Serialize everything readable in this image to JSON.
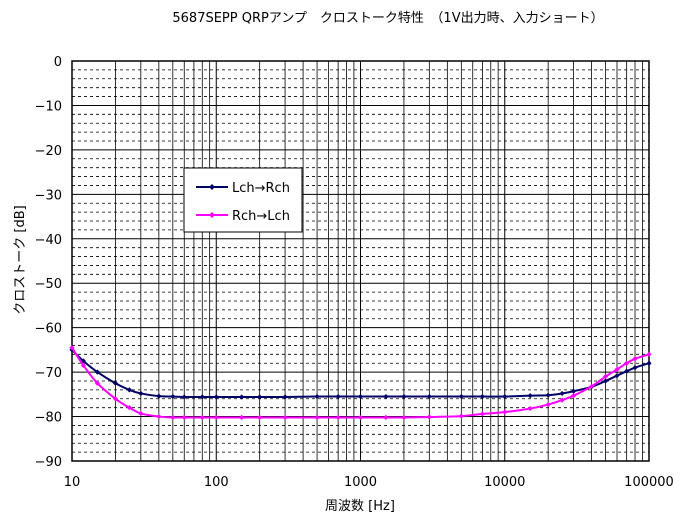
{
  "chart_data": {
    "type": "line",
    "title": "5687SEPP QRPアンプ　クロストーク特性　（1V出力時、入力ショート）",
    "xlabel": "周波数  [Hz]",
    "ylabel": "クロストーク  [dB]",
    "x_scale": "log",
    "xlim": [
      10,
      100000
    ],
    "ylim": [
      -90,
      0
    ],
    "x_ticks": [
      10,
      100,
      1000,
      10000,
      100000
    ],
    "x_tick_labels": [
      "10",
      "100",
      "1000",
      "10000",
      "100000"
    ],
    "y_ticks": [
      0,
      -10,
      -20,
      -30,
      -40,
      -50,
      -60,
      -70,
      -80,
      -90
    ],
    "y_tick_labels": [
      "0",
      "−10",
      "−20",
      "−30",
      "−40",
      "−50",
      "−60",
      "−70",
      "−80",
      "−90"
    ],
    "grid": true,
    "legend_position": "left-middle",
    "series": [
      {
        "name": "Lch→Rch",
        "color": "#000066",
        "marker": "diamond",
        "x": [
          10,
          12,
          15,
          20,
          25,
          30,
          40,
          50,
          60,
          80,
          100,
          150,
          200,
          300,
          500,
          700,
          1000,
          1500,
          2000,
          3000,
          5000,
          7000,
          10000,
          15000,
          20000,
          25000,
          30000,
          40000,
          50000,
          60000,
          70000,
          80000,
          100000
        ],
        "y": [
          -65,
          -67.5,
          -70,
          -72.5,
          -74,
          -74.8,
          -75.4,
          -75.5,
          -75.6,
          -75.6,
          -75.6,
          -75.6,
          -75.6,
          -75.6,
          -75.5,
          -75.5,
          -75.5,
          -75.5,
          -75.5,
          -75.5,
          -75.5,
          -75.5,
          -75.5,
          -75.3,
          -75.2,
          -74.8,
          -74.3,
          -73.3,
          -72,
          -70.8,
          -69.8,
          -69,
          -68
        ]
      },
      {
        "name": "Rch→Lch",
        "color": "#ff00ff",
        "marker": "diamond",
        "x": [
          10,
          12,
          15,
          20,
          25,
          30,
          40,
          50,
          60,
          80,
          100,
          150,
          200,
          300,
          500,
          700,
          1000,
          1500,
          2000,
          3000,
          5000,
          7000,
          10000,
          15000,
          20000,
          25000,
          30000,
          40000,
          50000,
          60000,
          70000,
          80000,
          100000
        ],
        "y": [
          -64.5,
          -68.5,
          -72.5,
          -76,
          -78,
          -79.3,
          -80,
          -80.2,
          -80.2,
          -80.2,
          -80.2,
          -80.2,
          -80.2,
          -80.2,
          -80.2,
          -80.2,
          -80.2,
          -80.2,
          -80.2,
          -80.1,
          -79.9,
          -79.4,
          -79,
          -78.2,
          -77.3,
          -76.3,
          -75.3,
          -73.2,
          -71,
          -69.4,
          -68,
          -67,
          -66
        ]
      }
    ]
  }
}
